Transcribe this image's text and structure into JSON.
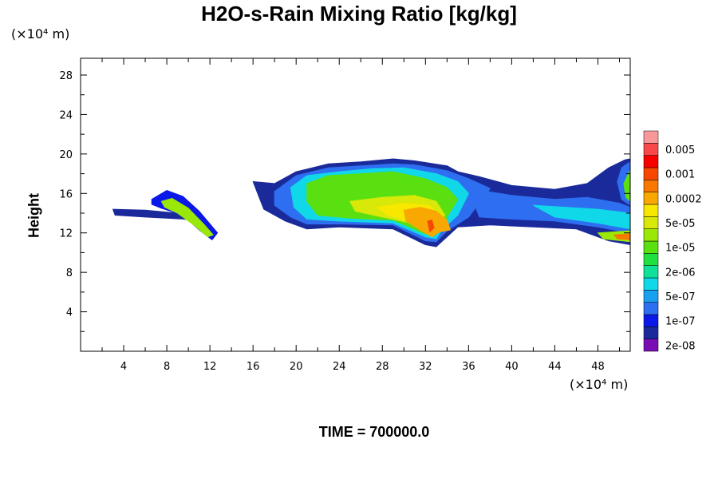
{
  "chart_data": {
    "type": "heatmap",
    "title": "H2O-s-Rain Mixing Ratio [kg/kg]",
    "ylabel": "Height",
    "x_unit_label": "(×10⁴ m)",
    "y_unit_label": "(×10⁴ m)",
    "footer": "TIME = 700000.0",
    "xlim": [
      0,
      51
    ],
    "ylim": [
      0,
      29.7
    ],
    "x_ticks": [
      4,
      8,
      12,
      16,
      20,
      24,
      28,
      32,
      36,
      40,
      44,
      48
    ],
    "y_ticks": [
      4,
      8,
      12,
      16,
      20,
      24,
      28
    ],
    "legend": {
      "placement": "right",
      "levels": [
        {
          "label": "2e-08",
          "color": "#7a0cb4"
        },
        {
          "label": "",
          "color": "#1b2a9a"
        },
        {
          "label": "1e-07",
          "color": "#0a18e8"
        },
        {
          "label": "",
          "color": "#2e6ef0"
        },
        {
          "label": "5e-07",
          "color": "#1aa0f0"
        },
        {
          "label": "",
          "color": "#10d8e8"
        },
        {
          "label": "2e-06",
          "color": "#10e09a"
        },
        {
          "label": "",
          "color": "#20e040"
        },
        {
          "label": "1e-05",
          "color": "#5ae010"
        },
        {
          "label": "",
          "color": "#9ae808"
        },
        {
          "label": "5e-05",
          "color": "#d8e808"
        },
        {
          "label": "",
          "color": "#f8e800"
        },
        {
          "label": "0.0002",
          "color": "#f8a800"
        },
        {
          "label": "",
          "color": "#f87800"
        },
        {
          "label": "0.001",
          "color": "#f84800"
        },
        {
          "label": "",
          "color": "#f80000"
        },
        {
          "label": "0.005",
          "color": "#f84848"
        },
        {
          "label": "",
          "color": "#f89898"
        }
      ]
    },
    "regions": [
      {
        "name": "left-anvil",
        "level": 1,
        "pts": [
          [
            3,
            14.4
          ],
          [
            6,
            14.3
          ],
          [
            9,
            14
          ],
          [
            11,
            13.2
          ],
          [
            9.5,
            13.4
          ],
          [
            6,
            13.6
          ],
          [
            3.2,
            13.8
          ]
        ]
      },
      {
        "name": "left-cell-outer",
        "level": 2,
        "pts": [
          [
            6.6,
            15.4
          ],
          [
            8,
            16.3
          ],
          [
            9.5,
            15.7
          ],
          [
            11,
            14.2
          ],
          [
            12.7,
            12
          ],
          [
            12.2,
            11.3
          ],
          [
            11,
            12.3
          ],
          [
            9.5,
            13.8
          ],
          [
            7.5,
            14.5
          ],
          [
            6.6,
            14.9
          ]
        ]
      },
      {
        "name": "left-cell-core",
        "level": 9,
        "pts": [
          [
            7.5,
            15.2
          ],
          [
            8.5,
            15.5
          ],
          [
            10,
            14.5
          ],
          [
            11.5,
            12.8
          ],
          [
            12.3,
            11.8
          ],
          [
            11.8,
            11.6
          ],
          [
            10.5,
            12.8
          ],
          [
            9,
            14
          ],
          [
            7.8,
            14.6
          ]
        ]
      },
      {
        "name": "main-envelope",
        "level": 1,
        "pts": [
          [
            16,
            17.2
          ],
          [
            18,
            17
          ],
          [
            20,
            18.2
          ],
          [
            23,
            19
          ],
          [
            26,
            19.2
          ],
          [
            29,
            19.5
          ],
          [
            31,
            19.3
          ],
          [
            34,
            18.8
          ],
          [
            35,
            18.2
          ],
          [
            37,
            17.7
          ],
          [
            40,
            16.8
          ],
          [
            44,
            16.4
          ],
          [
            47,
            17
          ],
          [
            49,
            18.6
          ],
          [
            50.5,
            19.4
          ],
          [
            51,
            19.5
          ],
          [
            51,
            10.8
          ],
          [
            49,
            11.2
          ],
          [
            46,
            12.4
          ],
          [
            42,
            12.6
          ],
          [
            38,
            12.8
          ],
          [
            35,
            12.6
          ],
          [
            33,
            10.6
          ],
          [
            32,
            10.8
          ],
          [
            29,
            12.4
          ],
          [
            24,
            12.6
          ],
          [
            21,
            12.4
          ],
          [
            19,
            13.2
          ],
          [
            17,
            14.4
          ],
          [
            16.5,
            15.8
          ]
        ]
      },
      {
        "name": "main-blue",
        "level": 3,
        "pts": [
          [
            18,
            16.2
          ],
          [
            20,
            17.8
          ],
          [
            23,
            18.6
          ],
          [
            26,
            18.8
          ],
          [
            29,
            19
          ],
          [
            31,
            18.9
          ],
          [
            34,
            18.3
          ],
          [
            36,
            17.5
          ],
          [
            38,
            16.5
          ],
          [
            36,
            13.6
          ],
          [
            34,
            12.2
          ],
          [
            33,
            11.1
          ],
          [
            32,
            11.2
          ],
          [
            29,
            12.8
          ],
          [
            24,
            12.9
          ],
          [
            21,
            12.9
          ],
          [
            19.5,
            13.6
          ],
          [
            18,
            14.8
          ]
        ]
      },
      {
        "name": "main-cyan",
        "level": 5,
        "pts": [
          [
            19.5,
            16.6
          ],
          [
            21,
            17.8
          ],
          [
            24,
            18.2
          ],
          [
            27,
            18.5
          ],
          [
            30,
            18.6
          ],
          [
            33,
            18
          ],
          [
            35,
            17.2
          ],
          [
            36,
            16
          ],
          [
            35,
            13.8
          ],
          [
            33.5,
            12.3
          ],
          [
            33,
            11.4
          ],
          [
            32,
            11.6
          ],
          [
            29,
            13
          ],
          [
            24,
            13.2
          ],
          [
            21,
            13.4
          ],
          [
            19.8,
            14.6
          ]
        ]
      },
      {
        "name": "main-green",
        "level": 8,
        "pts": [
          [
            21,
            17
          ],
          [
            23,
            17.8
          ],
          [
            26,
            18
          ],
          [
            29,
            18.2
          ],
          [
            32,
            17.5
          ],
          [
            34,
            16.6
          ],
          [
            35,
            15.4
          ],
          [
            34,
            13.6
          ],
          [
            33,
            11.9
          ],
          [
            32,
            11.9
          ],
          [
            29,
            13.3
          ],
          [
            25,
            13.5
          ],
          [
            22,
            13.8
          ],
          [
            21,
            15.2
          ]
        ]
      },
      {
        "name": "main-yellowgreen",
        "level": 10,
        "pts": [
          [
            25,
            15.2
          ],
          [
            28,
            15.6
          ],
          [
            31,
            15.8
          ],
          [
            33,
            15.2
          ],
          [
            33.8,
            13.8
          ],
          [
            33,
            12.5
          ],
          [
            31.5,
            12.8
          ],
          [
            28,
            13.6
          ],
          [
            25.5,
            14.2
          ]
        ]
      },
      {
        "name": "main-yellow",
        "level": 11,
        "pts": [
          [
            27.5,
            14.6
          ],
          [
            30,
            15
          ],
          [
            32.3,
            14.8
          ],
          [
            33.5,
            13.6
          ],
          [
            33,
            12.4
          ],
          [
            31.5,
            12.9
          ],
          [
            28.5,
            13.8
          ]
        ]
      },
      {
        "name": "main-orange",
        "level": 12,
        "pts": [
          [
            30,
            14.3
          ],
          [
            31.5,
            14.6
          ],
          [
            33,
            14.2
          ],
          [
            34,
            13.3
          ],
          [
            34.3,
            12.3
          ],
          [
            33.3,
            12.1
          ],
          [
            32.6,
            11.6
          ],
          [
            31.5,
            12.3
          ],
          [
            30.2,
            13.2
          ]
        ]
      },
      {
        "name": "main-red",
        "level": 14,
        "pts": [
          [
            32.2,
            13.2
          ],
          [
            32.6,
            13.3
          ],
          [
            32.8,
            12.5
          ],
          [
            32.4,
            12.1
          ]
        ]
      },
      {
        "name": "right-blue",
        "level": 3,
        "pts": [
          [
            36,
            16.5
          ],
          [
            40,
            15.8
          ],
          [
            44,
            15.4
          ],
          [
            47,
            15.6
          ],
          [
            50,
            15
          ],
          [
            51,
            14.6
          ],
          [
            51,
            12
          ],
          [
            48,
            12.6
          ],
          [
            44,
            13.2
          ],
          [
            40,
            13.4
          ],
          [
            37,
            13.6
          ]
        ]
      },
      {
        "name": "right-cyan",
        "level": 5,
        "pts": [
          [
            42,
            14.8
          ],
          [
            45,
            14.6
          ],
          [
            48,
            14.4
          ],
          [
            51,
            14
          ],
          [
            51,
            12.4
          ],
          [
            48,
            13
          ],
          [
            44,
            13.6
          ]
        ]
      },
      {
        "name": "right-top-cell",
        "level": 3,
        "pts": [
          [
            49.8,
            17.2
          ],
          [
            50.2,
            18.6
          ],
          [
            51,
            19.2
          ],
          [
            51,
            14.8
          ],
          [
            50.2,
            15.4
          ]
        ]
      },
      {
        "name": "right-top-core",
        "level": 8,
        "pts": [
          [
            50.4,
            17
          ],
          [
            51,
            18.4
          ],
          [
            51,
            15.2
          ],
          [
            50.6,
            15.6
          ]
        ]
      },
      {
        "name": "right-low-band",
        "level": 9,
        "pts": [
          [
            48,
            12
          ],
          [
            51,
            12.2
          ],
          [
            51,
            11.1
          ],
          [
            48.5,
            11.4
          ]
        ]
      },
      {
        "name": "right-low-core",
        "level": 13,
        "pts": [
          [
            49.5,
            11.8
          ],
          [
            51,
            11.9
          ],
          [
            51,
            11.3
          ],
          [
            49.8,
            11.4
          ]
        ]
      }
    ]
  }
}
